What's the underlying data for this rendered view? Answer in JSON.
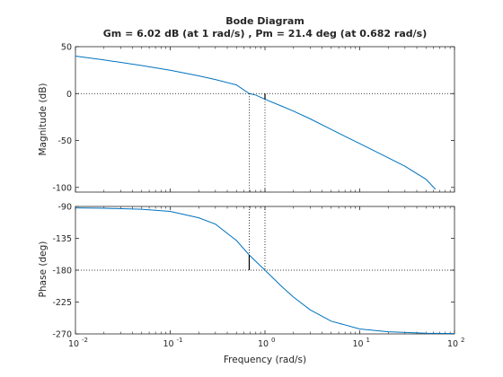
{
  "chart_data": {
    "type": "line",
    "title": "Bode Diagram",
    "subtitle": "Gm = 6.02 dB (at 1 rad/s) ,  Pm = 21.4 deg (at 0.682 rad/s)",
    "xlabel": "Frequency  (rad/s)",
    "xscale": "log",
    "xlim": [
      0.01,
      100
    ],
    "x_ticks": [
      {
        "value": 0.01,
        "base": "10",
        "exp": "-2"
      },
      {
        "value": 0.1,
        "base": "10",
        "exp": "-1"
      },
      {
        "value": 1,
        "base": "10",
        "exp": "0"
      },
      {
        "value": 10,
        "base": "10",
        "exp": "1"
      },
      {
        "value": 100,
        "base": "10",
        "exp": "2"
      }
    ],
    "grid": false,
    "line_color": "#0072BD",
    "margin_line_color": "#000000",
    "magnitude": {
      "ylabel": "Magnitude (dB)",
      "ylim": [
        -105,
        50
      ],
      "yticks": [
        50,
        0,
        -50,
        -100
      ],
      "ytick_labels": [
        "50",
        "0",
        "-50",
        "-100"
      ],
      "x": [
        0.01,
        0.02,
        0.05,
        0.1,
        0.2,
        0.3,
        0.5,
        0.682,
        0.8,
        1,
        1.5,
        2,
        3,
        5,
        7,
        10,
        20,
        30,
        50,
        63
      ],
      "y": [
        40,
        35.9,
        29.9,
        24.9,
        18.9,
        15.0,
        9.2,
        0,
        -1.6,
        -6.0,
        -13.4,
        -18.7,
        -26.9,
        -38.2,
        -45.6,
        -53.3,
        -68.5,
        -77.4,
        -91.3,
        -102
      ],
      "reference_line": 0,
      "crossover_freq": 0.682,
      "gain_margin_freq": 1,
      "gain_margin_value": -6.02
    },
    "phase": {
      "ylabel": "Phase (deg)",
      "ylim": [
        -270,
        -90
      ],
      "yticks": [
        -90,
        -135,
        -180,
        -225,
        -270
      ],
      "ytick_labels": [
        "-90",
        "-135",
        "-180",
        "-225",
        "-270"
      ],
      "x": [
        0.01,
        0.02,
        0.05,
        0.1,
        0.2,
        0.3,
        0.5,
        0.682,
        1,
        1.5,
        2,
        3,
        5,
        10,
        20,
        50,
        100
      ],
      "y": [
        -92,
        -92.5,
        -94,
        -97,
        -106,
        -115,
        -138,
        -158.6,
        -180,
        -203,
        -218,
        -236,
        -252,
        -263,
        -267,
        -269,
        -269.5
      ],
      "reference_line": -180,
      "phase_cross_freq": 1,
      "phase_margin_freq": 0.682,
      "phase_margin_value": 21.4
    }
  }
}
